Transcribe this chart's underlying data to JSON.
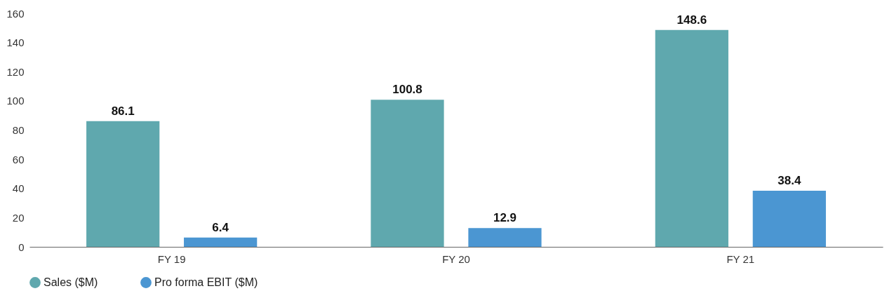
{
  "chart_data": {
    "type": "bar",
    "categories": [
      "FY 19",
      "FY 20",
      "FY 21"
    ],
    "series": [
      {
        "name": "Sales ($M)",
        "color": "#5fa8ae",
        "values": [
          86.1,
          100.8,
          148.6
        ]
      },
      {
        "name": "Pro forma EBIT ($M)",
        "color": "#4b96d2",
        "values": [
          6.4,
          12.9,
          38.4
        ]
      }
    ],
    "ylim": [
      0,
      160
    ],
    "yticks": [
      0,
      20,
      40,
      60,
      80,
      100,
      120,
      140,
      160
    ],
    "grid": false,
    "legend": "bottom",
    "data_labels": true
  }
}
